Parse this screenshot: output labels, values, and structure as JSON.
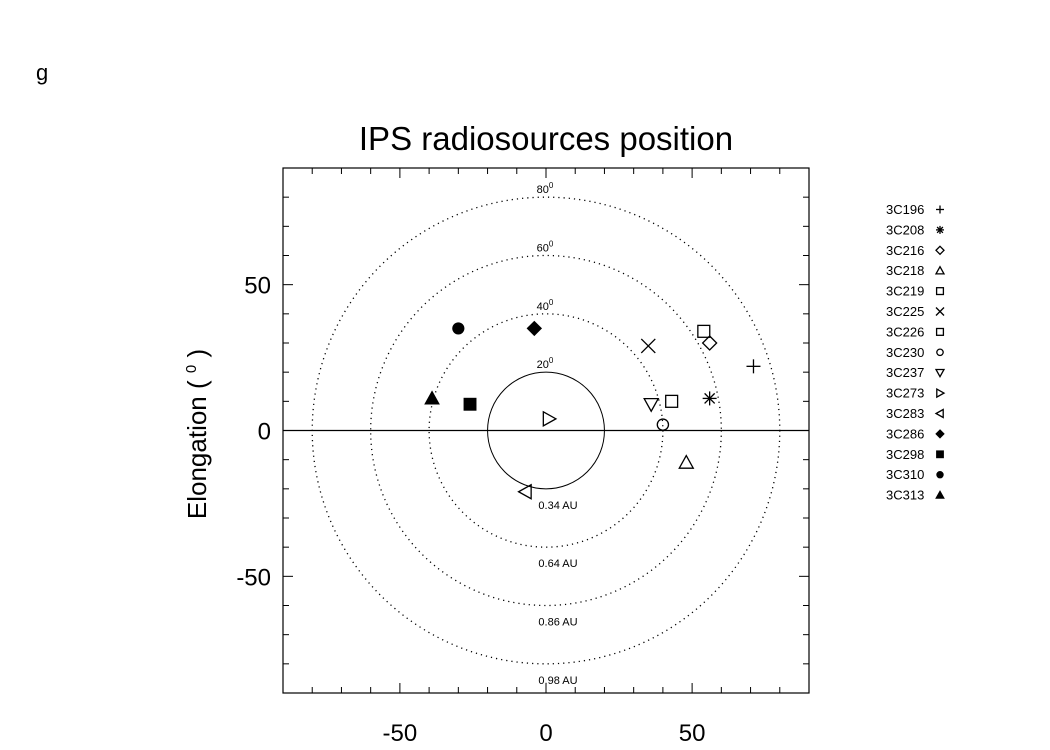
{
  "panel_label": "g",
  "chart_data": {
    "type": "scatter",
    "title": "IPS radiosources position",
    "ylabel": "Elongation",
    "ylabel_degree": "0",
    "xlabel": "",
    "xlim": [
      -90,
      90
    ],
    "ylim": [
      -90,
      90
    ],
    "x_ticks": [
      -50,
      0,
      50
    ],
    "y_ticks": [
      -50,
      0,
      50
    ],
    "legend_position": "right",
    "grid": false,
    "circles": [
      {
        "radius": 20,
        "style": "solid",
        "angle_label": "20",
        "angle_sup": "0",
        "distance_label": "0.34 AU"
      },
      {
        "radius": 40,
        "style": "dotted",
        "angle_label": "40",
        "angle_sup": "0",
        "distance_label": "0.64 AU"
      },
      {
        "radius": 60,
        "style": "dotted",
        "angle_label": "60",
        "angle_sup": "0",
        "distance_label": "0.86 AU"
      },
      {
        "radius": 80,
        "style": "dotted",
        "angle_label": "80",
        "angle_sup": "0",
        "distance_label": "0.98 AU"
      }
    ],
    "series": [
      {
        "name": "3C196",
        "marker": "plus",
        "x": 71,
        "y": 22
      },
      {
        "name": "3C208",
        "marker": "asterisk",
        "x": 56,
        "y": 11
      },
      {
        "name": "3C216",
        "marker": "diamond-open",
        "x": 56,
        "y": 30
      },
      {
        "name": "3C218",
        "marker": "triangle-up-open",
        "x": 48,
        "y": -11
      },
      {
        "name": "3C219",
        "marker": "square-open",
        "x": 43,
        "y": 10
      },
      {
        "name": "3C225",
        "marker": "x",
        "x": 35,
        "y": 29
      },
      {
        "name": "3C226",
        "marker": "square-open",
        "x": 54,
        "y": 34
      },
      {
        "name": "3C230",
        "marker": "circle-open",
        "x": 40,
        "y": 2
      },
      {
        "name": "3C237",
        "marker": "triangle-down-open",
        "x": 36,
        "y": 9
      },
      {
        "name": "3C273",
        "marker": "triangle-right-open",
        "x": 1,
        "y": 4
      },
      {
        "name": "3C283",
        "marker": "triangle-left-open",
        "x": -7,
        "y": -21
      },
      {
        "name": "3C286",
        "marker": "diamond-filled",
        "x": -4,
        "y": 35
      },
      {
        "name": "3C298",
        "marker": "square-filled",
        "x": -26,
        "y": 9
      },
      {
        "name": "3C310",
        "marker": "circle-filled",
        "x": -30,
        "y": 35
      },
      {
        "name": "3C313",
        "marker": "triangle-up-filled",
        "x": -39,
        "y": 11
      }
    ]
  }
}
